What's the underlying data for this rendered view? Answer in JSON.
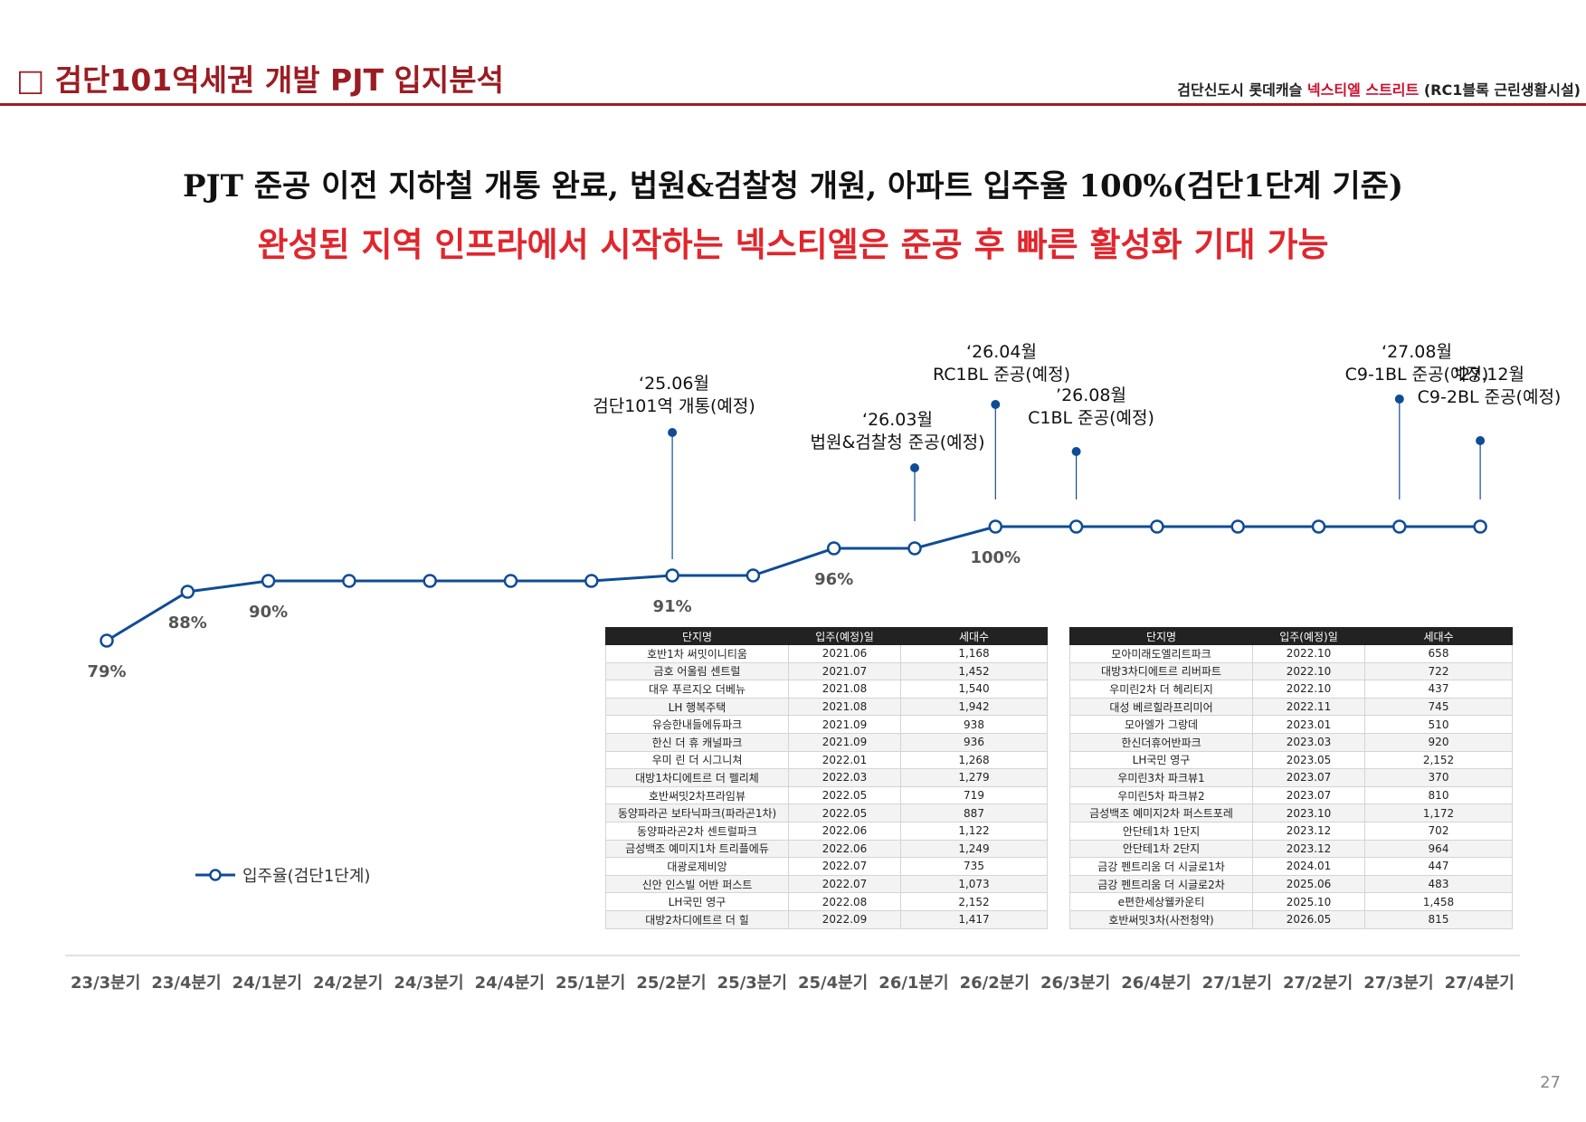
{
  "header": {
    "title": "□ 검단101역세권 개발 PJT 입지분석",
    "right_prefix": "검단신도시 롯데캐슬 ",
    "right_accent": "넥스티엘 스트리트",
    "right_suffix": " (RC1블록 근린생활시설)"
  },
  "headline": {
    "line1": "PJT 준공 이전 지하철 개통 완료, 법원&검찰청 개원, 아파트 입주율 100%(검단1단계 기준)",
    "line2": "완성된 지역 인프라에서 시작하는 넥스티엘은 준공 후 빠른 활성화 기대 가능"
  },
  "colors": {
    "accent": "#9b1c22",
    "highlight": "#e0262d",
    "series": "#0f4c96",
    "table_header": "#222222"
  },
  "chart_data": {
    "type": "line",
    "title": "",
    "xlabel": "",
    "ylabel": "",
    "categories": [
      "23/3분기",
      "23/4분기",
      "24/1분기",
      "24/2분기",
      "24/3분기",
      "24/4분기",
      "25/1분기",
      "25/2분기",
      "25/3분기",
      "25/4분기",
      "26/1분기",
      "26/2분기",
      "26/3분기",
      "26/4분기",
      "27/1분기",
      "27/2분기",
      "27/3분기",
      "27/4분기"
    ],
    "series": [
      {
        "name": "입주율(검단1단계)",
        "values": [
          79,
          88,
          90,
          90,
          90,
          90,
          90,
          91,
          91,
          96,
          96,
          100,
          100,
          100,
          100,
          100,
          100,
          100
        ]
      }
    ],
    "point_labels": [
      {
        "index": 0,
        "text": "79%"
      },
      {
        "index": 1,
        "text": "88%"
      },
      {
        "index": 2,
        "text": "90%"
      },
      {
        "index": 7,
        "text": "91%"
      },
      {
        "index": 9,
        "text": "96%"
      },
      {
        "index": 11,
        "text": "100%"
      }
    ],
    "annotations": [
      {
        "index": 7,
        "lines": [
          "‘25.06월",
          "검단101역 개통(예정)"
        ]
      },
      {
        "index": 10,
        "lines": [
          "‘26.03월",
          "법원&검찰청 준공(예정)"
        ]
      },
      {
        "index": 11,
        "lines": [
          "‘26.04월",
          "RC1BL 준공(예정)"
        ]
      },
      {
        "index": 12,
        "lines": [
          "’26.08월",
          "C1BL 준공(예정)"
        ]
      },
      {
        "index": 16,
        "lines": [
          "‘27.08월",
          "C9-1BL 준공(예정)"
        ]
      },
      {
        "index": 17,
        "lines": [
          "’27.12월",
          "C9-2BL 준공(예정)"
        ]
      }
    ],
    "legend": "bottom-left",
    "ylim": [
      70,
      110
    ],
    "grid": false
  },
  "legend_label": "입주율(검단1단계)",
  "table1": {
    "headers": [
      "단지명",
      "입주(예정)일",
      "세대수"
    ],
    "rows": [
      [
        "호반1차 써밋이니티움",
        "2021.06",
        "1,168"
      ],
      [
        "금호 어울림 센트럴",
        "2021.07",
        "1,452"
      ],
      [
        "대우 푸르지오 더베뉴",
        "2021.08",
        "1,540"
      ],
      [
        "LH 행복주택",
        "2021.08",
        "1,942"
      ],
      [
        "유승한내들에듀파크",
        "2021.09",
        "938"
      ],
      [
        "한신 더 휴 캐널파크",
        "2021.09",
        "936"
      ],
      [
        "우미 린 더 시그니쳐",
        "2022.01",
        "1,268"
      ],
      [
        "대방1차디에트르 더 펠리체",
        "2022.03",
        "1,279"
      ],
      [
        "호반써밋2차프라임뷰",
        "2022.05",
        "719"
      ],
      [
        "동양파라곤 보타닉파크(파라곤1차)",
        "2022.05",
        "887"
      ],
      [
        "동양파라곤2차 센트럴파크",
        "2022.06",
        "1,122"
      ],
      [
        "금성백조 예미지1차 트리플에듀",
        "2022.06",
        "1,249"
      ],
      [
        "대광로제비앙",
        "2022.07",
        "735"
      ],
      [
        "신안 인스빌 어반 퍼스트",
        "2022.07",
        "1,073"
      ],
      [
        "LH국민 영구",
        "2022.08",
        "2,152"
      ],
      [
        "대방2차디에트르 더 힐",
        "2022.09",
        "1,417"
      ]
    ]
  },
  "table2": {
    "headers": [
      "단지명",
      "입주(예정)일",
      "세대수"
    ],
    "rows": [
      [
        "모아미래도엘리트파크",
        "2022.10",
        "658"
      ],
      [
        "대방3차디에트르 리버파트",
        "2022.10",
        "722"
      ],
      [
        "우미린2차 더 헤리티지",
        "2022.10",
        "437"
      ],
      [
        "대성 베르힐라프리미어",
        "2022.11",
        "745"
      ],
      [
        "모아엘가 그랑데",
        "2023.01",
        "510"
      ],
      [
        "한신더휴어반파크",
        "2023.03",
        "920"
      ],
      [
        "LH국민 영구",
        "2023.05",
        "2,152"
      ],
      [
        "우미린3차 파크뷰1",
        "2023.07",
        "370"
      ],
      [
        "우미린5차 파크뷰2",
        "2023.07",
        "810"
      ],
      [
        "금성백조 예미지2차 퍼스트포레",
        "2023.10",
        "1,172"
      ],
      [
        "안단테1차 1단지",
        "2023.12",
        "702"
      ],
      [
        "안단테1차 2단지",
        "2023.12",
        "964"
      ],
      [
        "금강 펜트리움 더 시글로1차",
        "2024.01",
        "447"
      ],
      [
        "금강 펜트리움 더 시글로2차",
        "2025.06",
        "483"
      ],
      [
        "e편한세상웰카운티",
        "2025.10",
        "1,458"
      ],
      [
        "호반써밋3차(사전청약)",
        "2026.05",
        "815"
      ]
    ]
  },
  "page_number": "27"
}
